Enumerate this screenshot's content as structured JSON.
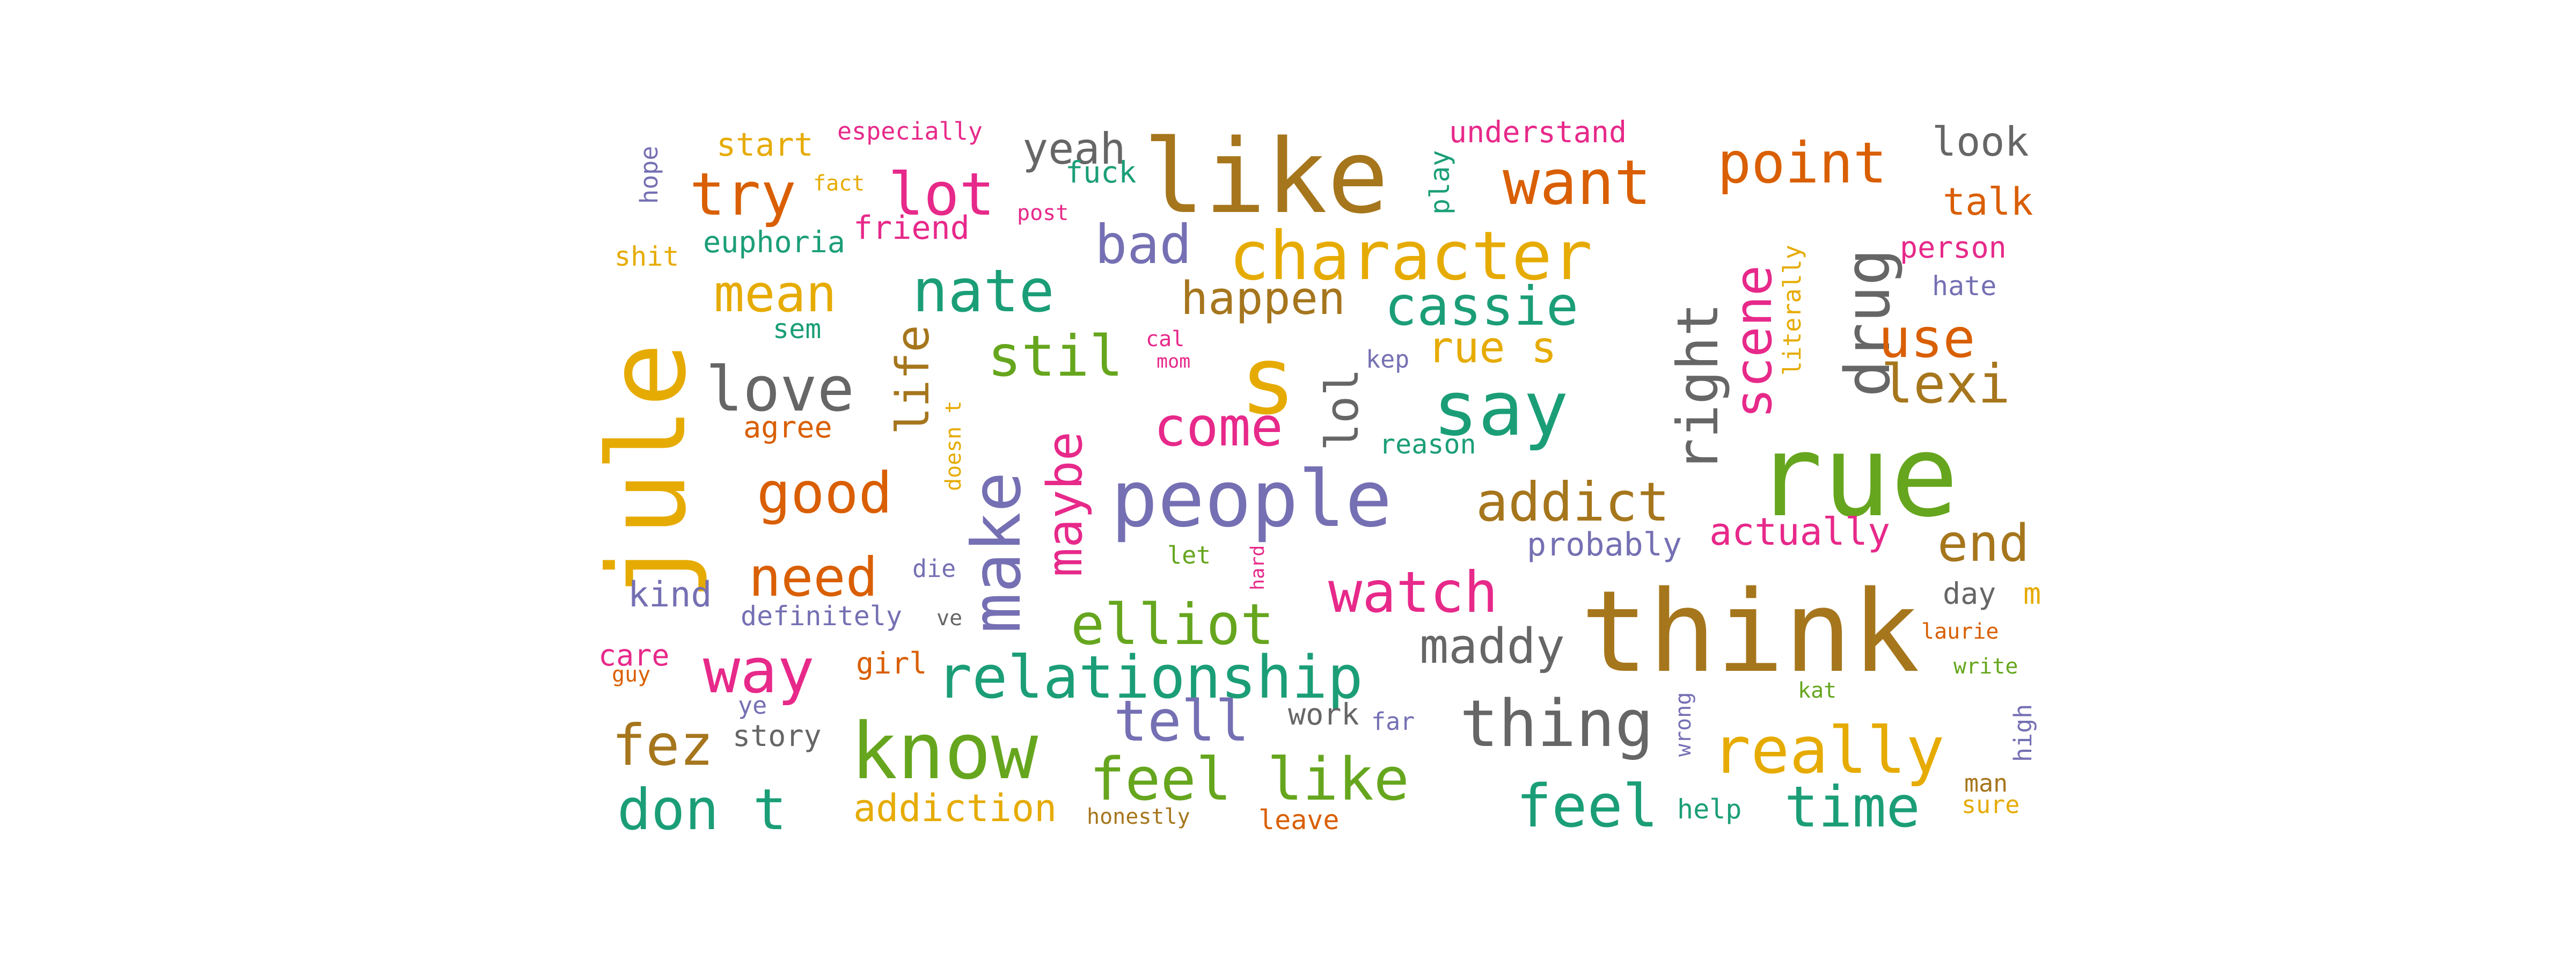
{
  "words": [
    {
      "text": "rue",
      "color": "#66a61e"
    },
    {
      "text": "think",
      "color": "#a6761d"
    },
    {
      "text": "like",
      "color": "#a6761d"
    },
    {
      "text": "jule",
      "color": "#e6ab02"
    },
    {
      "text": "people",
      "color": "#7570b3"
    },
    {
      "text": "know",
      "color": "#66a61e"
    },
    {
      "text": "say",
      "color": "#1b9e77"
    },
    {
      "text": "character",
      "color": "#e6ab02"
    },
    {
      "text": "s",
      "color": "#e6ab02"
    },
    {
      "text": "make",
      "color": "#7570b3"
    },
    {
      "text": "want",
      "color": "#d95f02"
    },
    {
      "text": "point",
      "color": "#d95f02"
    },
    {
      "text": "drug",
      "color": "#666666"
    },
    {
      "text": "right",
      "color": "#666666"
    },
    {
      "text": "scene",
      "color": "#e7298a"
    },
    {
      "text": "really",
      "color": "#e6ab02"
    },
    {
      "text": "relationship",
      "color": "#1b9e77"
    },
    {
      "text": "feel like",
      "color": "#66a61e"
    },
    {
      "text": "thing",
      "color": "#666666"
    },
    {
      "text": "addict",
      "color": "#a6761d"
    },
    {
      "text": "elliot",
      "color": "#66a61e"
    },
    {
      "text": "nate",
      "color": "#1b9e77"
    },
    {
      "text": "lot",
      "color": "#e7298a"
    },
    {
      "text": "try",
      "color": "#d95f02"
    },
    {
      "text": "love",
      "color": "#666666"
    },
    {
      "text": "cassie",
      "color": "#1b9e77"
    },
    {
      "text": "way",
      "color": "#e7298a"
    },
    {
      "text": "feel",
      "color": "#1b9e77"
    },
    {
      "text": "time",
      "color": "#1b9e77"
    },
    {
      "text": "don t",
      "color": "#1b9e77"
    },
    {
      "text": "fez",
      "color": "#a6761d"
    },
    {
      "text": "tell",
      "color": "#7570b3"
    },
    {
      "text": "watch",
      "color": "#e7298a"
    },
    {
      "text": "good",
      "color": "#d95f02"
    },
    {
      "text": "need",
      "color": "#d95f02"
    },
    {
      "text": "maybe",
      "color": "#e7298a"
    },
    {
      "text": "stil",
      "color": "#66a61e"
    },
    {
      "text": "mean",
      "color": "#e6ab02"
    },
    {
      "text": "bad",
      "color": "#7570b3"
    },
    {
      "text": "come",
      "color": "#e7298a"
    },
    {
      "text": "happen",
      "color": "#a6761d"
    },
    {
      "text": "use",
      "color": "#d95f02"
    },
    {
      "text": "lexi",
      "color": "#a6761d"
    },
    {
      "text": "maddy",
      "color": "#666666"
    },
    {
      "text": "end",
      "color": "#a6761d"
    },
    {
      "text": "rue s",
      "color": "#e6ab02"
    },
    {
      "text": "life",
      "color": "#a6761d"
    },
    {
      "text": "lol",
      "color": "#666666"
    },
    {
      "text": "actually",
      "color": "#e7298a"
    },
    {
      "text": "addiction",
      "color": "#e6ab02"
    },
    {
      "text": "yeah",
      "color": "#666666"
    },
    {
      "text": "look",
      "color": "#666666"
    },
    {
      "text": "talk",
      "color": "#d95f02"
    },
    {
      "text": "probably",
      "color": "#7570b3"
    },
    {
      "text": "kind",
      "color": "#7570b3"
    },
    {
      "text": "start",
      "color": "#e6ab02"
    },
    {
      "text": "understand",
      "color": "#e7298a"
    },
    {
      "text": "friend",
      "color": "#e7298a"
    },
    {
      "text": "euphoria",
      "color": "#1b9e77"
    },
    {
      "text": "person",
      "color": "#e7298a"
    },
    {
      "text": "fuck",
      "color": "#1b9e77"
    },
    {
      "text": "shit",
      "color": "#e6ab02"
    },
    {
      "text": "girl",
      "color": "#d95f02"
    },
    {
      "text": "work",
      "color": "#666666"
    },
    {
      "text": "definitely",
      "color": "#7570b3"
    },
    {
      "text": "story",
      "color": "#666666"
    },
    {
      "text": "agree",
      "color": "#d95f02"
    },
    {
      "text": "care",
      "color": "#e7298a"
    },
    {
      "text": "leave",
      "color": "#d95f02"
    },
    {
      "text": "help",
      "color": "#1b9e77"
    },
    {
      "text": "day",
      "color": "#666666"
    },
    {
      "text": "hate",
      "color": "#7570b3"
    },
    {
      "text": "reason",
      "color": "#1b9e77"
    },
    {
      "text": "especially",
      "color": "#e7298a"
    },
    {
      "text": "play",
      "color": "#1b9e77"
    },
    {
      "text": "hope",
      "color": "#7570b3"
    },
    {
      "text": "fact",
      "color": "#e6ab02"
    },
    {
      "text": "post",
      "color": "#e7298a"
    },
    {
      "text": "sem",
      "color": "#1b9e77"
    },
    {
      "text": "kep",
      "color": "#7570b3"
    },
    {
      "text": "cal",
      "color": "#e7298a"
    },
    {
      "text": "mom",
      "color": "#e7298a"
    },
    {
      "text": "doesn t",
      "color": "#e6ab02"
    },
    {
      "text": "let",
      "color": "#66a61e"
    },
    {
      "text": "hard",
      "color": "#e7298a"
    },
    {
      "text": "die",
      "color": "#7570b3"
    },
    {
      "text": "ve",
      "color": "#666666"
    },
    {
      "text": "guy",
      "color": "#d95f02"
    },
    {
      "text": "ye",
      "color": "#7570b3"
    },
    {
      "text": "far",
      "color": "#7570b3"
    },
    {
      "text": "honestly",
      "color": "#a6761d"
    },
    {
      "text": "literally",
      "color": "#e6ab02"
    },
    {
      "text": "laurie",
      "color": "#d95f02"
    },
    {
      "text": "write",
      "color": "#66a61e"
    },
    {
      "text": "kat",
      "color": "#66a61e"
    },
    {
      "text": "wrong",
      "color": "#7570b3"
    },
    {
      "text": "high",
      "color": "#7570b3"
    },
    {
      "text": "man",
      "color": "#a6761d"
    },
    {
      "text": "sure",
      "color": "#e6ab02"
    },
    {
      "text": "m",
      "color": "#e6ab02"
    }
  ]
}
